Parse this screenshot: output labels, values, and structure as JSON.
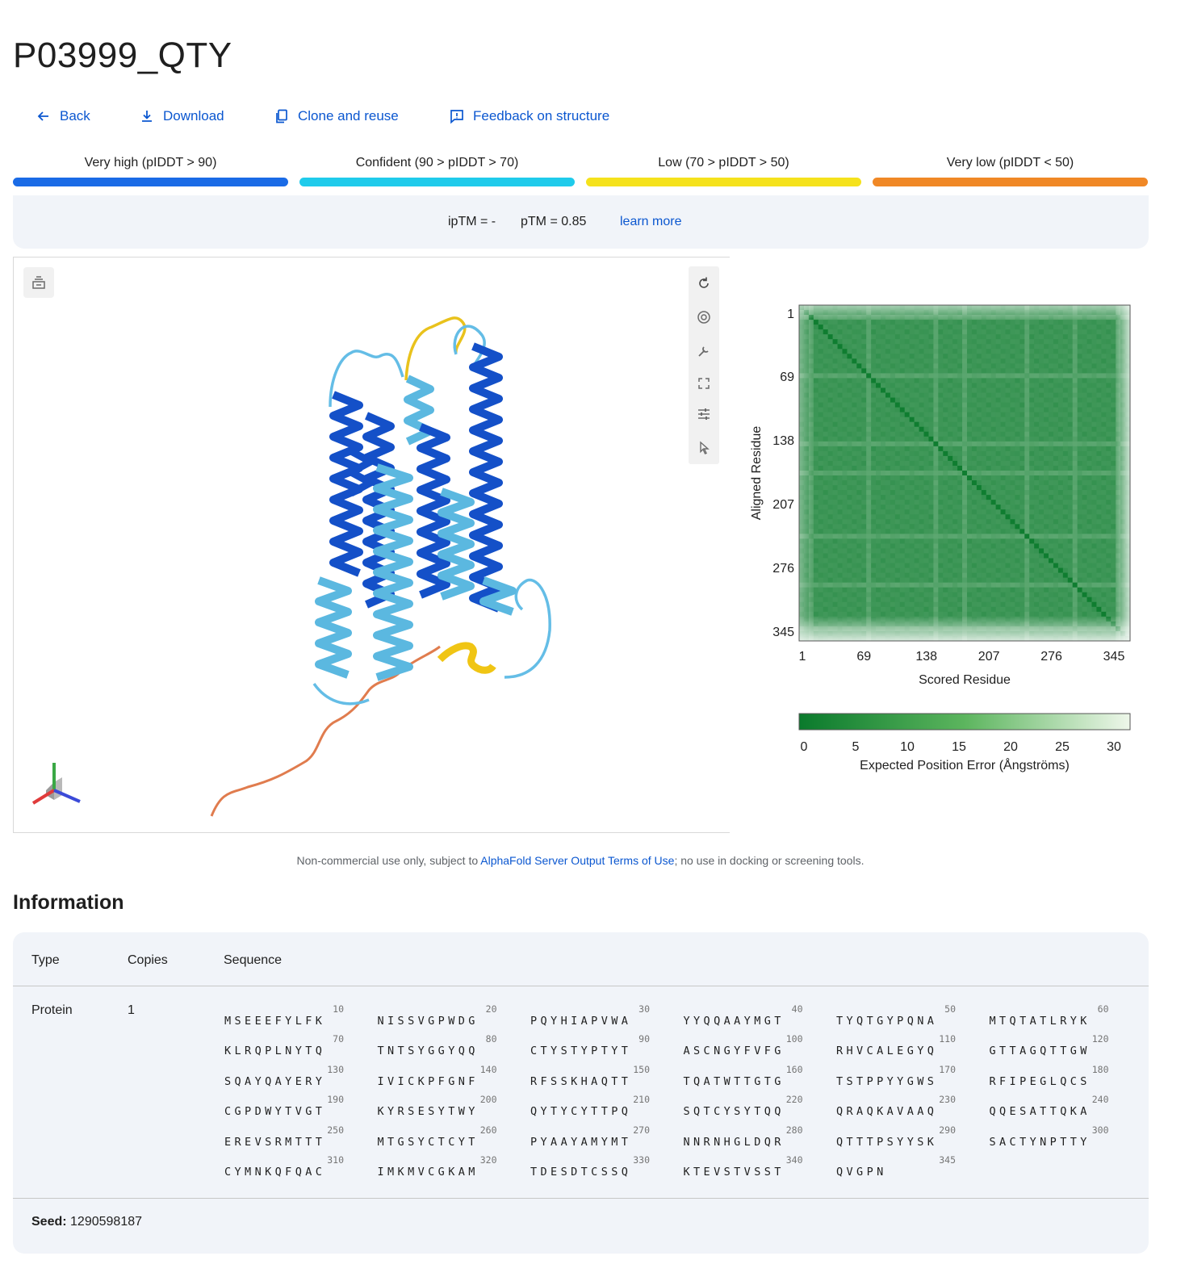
{
  "page": {
    "title": "P03999_QTY"
  },
  "toolbar": {
    "back": "Back",
    "download": "Download",
    "clone": "Clone and reuse",
    "feedback": "Feedback on structure"
  },
  "legend": [
    {
      "label": "Very high (pIDDT > 90)",
      "color": "#1a6be6"
    },
    {
      "label": "Confident (90 > pIDDT > 70)",
      "color": "#1fcbeb"
    },
    {
      "label": "Low (70 > pIDDT > 50)",
      "color": "#f5e21c"
    },
    {
      "label": "Very low (pIDDT < 50)",
      "color": "#f08826"
    }
  ],
  "metrics": {
    "iptm": "ipTM = -",
    "ptm": "pTM = 0.85",
    "learn_more": "learn more"
  },
  "viewer": {
    "icons": [
      "layers-icon",
      "rotate-icon",
      "camera-icon",
      "wrench-icon",
      "fullscreen-icon",
      "sliders-icon",
      "cursor-icon"
    ]
  },
  "pae_chart": {
    "y_label": "Aligned Residue",
    "x_label": "Scored Residue",
    "ticks": [
      "1",
      "69",
      "138",
      "207",
      "276",
      "345"
    ],
    "colorbar_ticks": [
      "0",
      "5",
      "10",
      "15",
      "20",
      "25",
      "30"
    ],
    "colorbar_label": "Expected Position Error (Ångströms)"
  },
  "chart_data": {
    "type": "heatmap",
    "title": "",
    "xlabel": "Scored Residue",
    "ylabel": "Aligned Residue",
    "x_ticks": [
      1,
      69,
      138,
      207,
      276,
      345
    ],
    "y_ticks": [
      1,
      69,
      138,
      207,
      276,
      345
    ],
    "xlim": [
      1,
      345
    ],
    "ylim": [
      1,
      345
    ],
    "color_scale": {
      "min": 0,
      "max": 30,
      "ticks": [
        0,
        5,
        10,
        15,
        20,
        25,
        30
      ],
      "label": "Expected Position Error (Ångströms)",
      "low_color": "#0a7a2c",
      "high_color": "#eef7ea"
    }
  },
  "terms": {
    "prefix": "Non-commercial use only, subject to ",
    "link": "AlphaFold Server Output Terms of Use",
    "suffix": "; no use in docking or screening tools."
  },
  "info": {
    "title": "Information",
    "headers": {
      "type": "Type",
      "copies": "Copies",
      "sequence": "Sequence"
    },
    "row": {
      "type": "Protein",
      "copies": "1"
    },
    "sequence_blocks": [
      {
        "num": "10",
        "res": "MSEEEFYLFK"
      },
      {
        "num": "20",
        "res": "NISSVGPWDG"
      },
      {
        "num": "30",
        "res": "PQYHIAPVWA"
      },
      {
        "num": "40",
        "res": "YYQQAAYMGT"
      },
      {
        "num": "50",
        "res": "TYQTGYPQNA"
      },
      {
        "num": "60",
        "res": "MTQTATLRYK"
      },
      {
        "num": "70",
        "res": "KLRQPLNYTQ"
      },
      {
        "num": "80",
        "res": "TNTSYGGYQQ"
      },
      {
        "num": "90",
        "res": "CTYSTYPTYT"
      },
      {
        "num": "100",
        "res": "ASCNGYFVFG"
      },
      {
        "num": "110",
        "res": "RHVCALEGYQ"
      },
      {
        "num": "120",
        "res": "GTTAGQTTGW"
      },
      {
        "num": "130",
        "res": "SQAYQAYERY"
      },
      {
        "num": "140",
        "res": "IVICKPFGNF"
      },
      {
        "num": "150",
        "res": "RFSSKHAQTT"
      },
      {
        "num": "160",
        "res": "TQATWTTGTG"
      },
      {
        "num": "170",
        "res": "TSTPPYYGWS"
      },
      {
        "num": "180",
        "res": "RFIPEGLQCS"
      },
      {
        "num": "190",
        "res": "CGPDWYTVGT"
      },
      {
        "num": "200",
        "res": "KYRSESYTWY"
      },
      {
        "num": "210",
        "res": "QYTYCYTTPQ"
      },
      {
        "num": "220",
        "res": "SQTCYSYTQQ"
      },
      {
        "num": "230",
        "res": "QRAQKAVAAQ"
      },
      {
        "num": "240",
        "res": "QQESATTQKA"
      },
      {
        "num": "250",
        "res": "EREVSRMTTT"
      },
      {
        "num": "260",
        "res": "MTGSYCTCYT"
      },
      {
        "num": "270",
        "res": "PYAAYAMYMT"
      },
      {
        "num": "280",
        "res": "NNRNHGLDQR"
      },
      {
        "num": "290",
        "res": "QTTTPSYYSK"
      },
      {
        "num": "300",
        "res": "SACTYNPTTY"
      },
      {
        "num": "310",
        "res": "CYMNKQFQAC"
      },
      {
        "num": "320",
        "res": "IMKMVCGKAM"
      },
      {
        "num": "330",
        "res": "TDESDTCSSQ"
      },
      {
        "num": "340",
        "res": "KTEVSTVSST"
      },
      {
        "num": "345",
        "res": "QVGPN"
      }
    ],
    "seed_label": "Seed:",
    "seed_value": "1290598187"
  }
}
